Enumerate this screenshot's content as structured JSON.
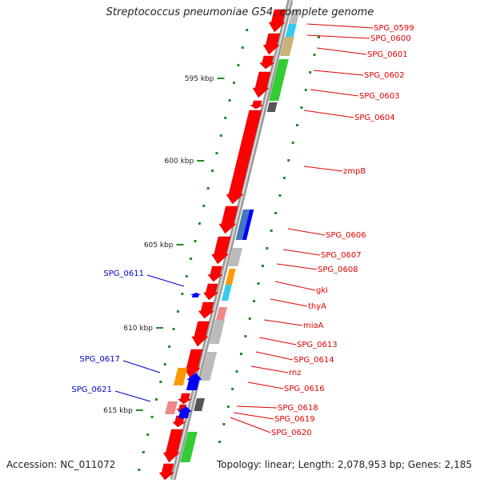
{
  "title": "Streptococcus pneumoniae G54, complete genome",
  "accession": "Accession: NC_011072",
  "summary": "Topology: linear; Length: 2,078,953 bp; Genes: 2,185",
  "scale_labels": [
    "595 kbp",
    "600 kbp",
    "605 kbp",
    "610 kbp",
    "615 kbp"
  ],
  "right_labels": [
    "SPG_0599",
    "SPG_0600",
    "SPG_0601",
    "SPG_0602",
    "SPG_0603",
    "SPG_0604",
    "zmpB",
    "SPG_0606",
    "SPG_0607",
    "SPG_0608",
    "gki",
    "thyA",
    "miaA",
    "SPG_0613",
    "SPG_0614",
    "rnz",
    "SPG_0616",
    "SPG_0618",
    "SPG_0619",
    "SPG_0620"
  ],
  "left_labels": [
    "SPG_0611",
    "SPG_0617",
    "SPG_0621"
  ],
  "colors": {
    "forward_label": "#dd0000",
    "reverse_label": "#0000cc",
    "backbone": "#888888",
    "scale_dots": "#228b22",
    "cds_forward": "#ff0000",
    "cds_reverse": "#0000ff",
    "cog_green": "#33cc33",
    "cog_tan": "#c8b478",
    "cog_cyan": "#33ccee",
    "cog_grey": "#bbbbbb",
    "cog_orange": "#ff9900",
    "cog_pink": "#ee8888",
    "cog_dark": "#555555",
    "cog_steelblue": "#4477bb"
  }
}
